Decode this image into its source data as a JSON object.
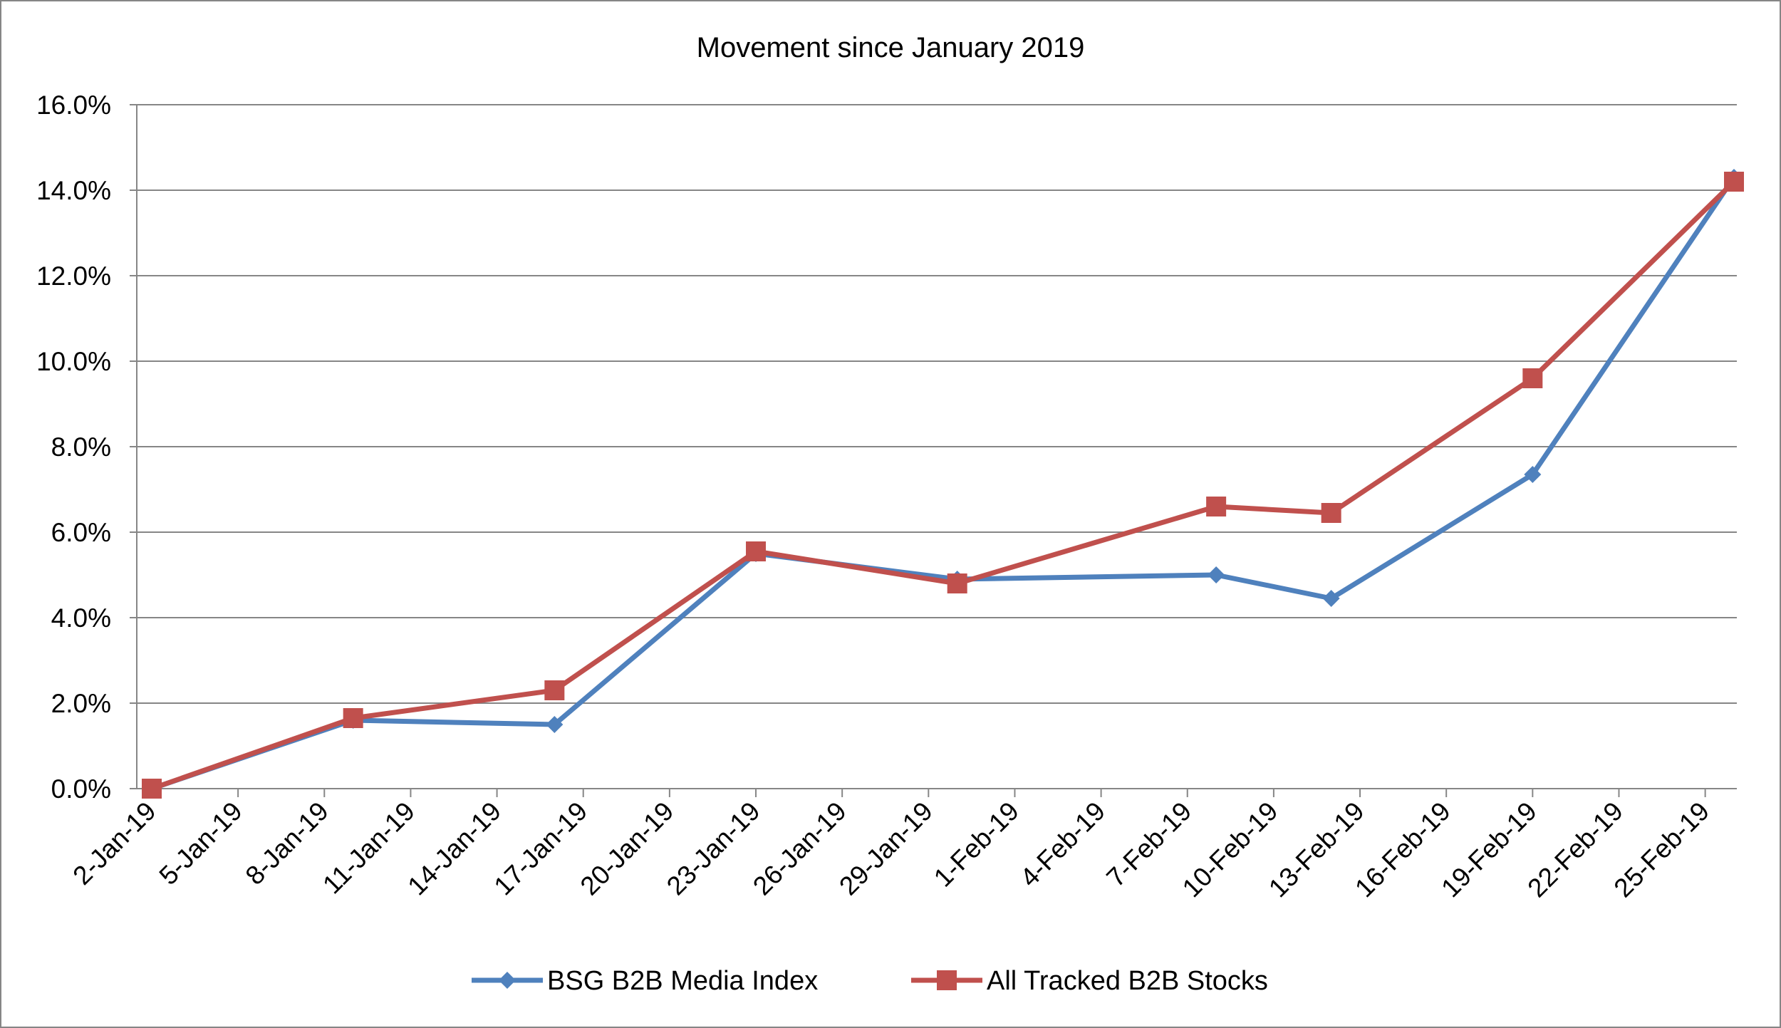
{
  "chart_data": {
    "type": "line",
    "title": "Movement since January 2019",
    "xlabel": "",
    "ylabel": "",
    "x_ticks": [
      "2-Jan-19",
      "5-Jan-19",
      "8-Jan-19",
      "11-Jan-19",
      "14-Jan-19",
      "17-Jan-19",
      "20-Jan-19",
      "23-Jan-19",
      "26-Jan-19",
      "29-Jan-19",
      "1-Feb-19",
      "4-Feb-19",
      "7-Feb-19",
      "10-Feb-19",
      "13-Feb-19",
      "16-Feb-19",
      "19-Feb-19",
      "22-Feb-19",
      "25-Feb-19"
    ],
    "x_range": [
      "2019-01-02",
      "2019-02-26"
    ],
    "y_ticks": [
      "0.0%",
      "2.0%",
      "4.0%",
      "6.0%",
      "8.0%",
      "10.0%",
      "12.0%",
      "14.0%",
      "16.0%"
    ],
    "ylim": [
      0,
      16
    ],
    "grid": true,
    "legend_position": "bottom",
    "series": [
      {
        "name": "BSG B2B Media Index",
        "color": "#4F81BD",
        "marker": "diamond",
        "x": [
          "2019-01-02",
          "2019-01-09",
          "2019-01-16",
          "2019-01-23",
          "2019-01-30",
          "2019-02-08",
          "2019-02-12",
          "2019-02-19",
          "2019-02-26"
        ],
        "values": [
          0.0,
          1.6,
          1.5,
          5.5,
          4.9,
          5.0,
          4.45,
          7.35,
          14.3
        ]
      },
      {
        "name": "All Tracked B2B Stocks",
        "color": "#C0504D",
        "marker": "square",
        "x": [
          "2019-01-02",
          "2019-01-09",
          "2019-01-16",
          "2019-01-23",
          "2019-01-30",
          "2019-02-08",
          "2019-02-12",
          "2019-02-19",
          "2019-02-26"
        ],
        "values": [
          0.0,
          1.65,
          2.3,
          5.55,
          4.8,
          6.6,
          6.45,
          9.6,
          14.2
        ]
      }
    ]
  }
}
